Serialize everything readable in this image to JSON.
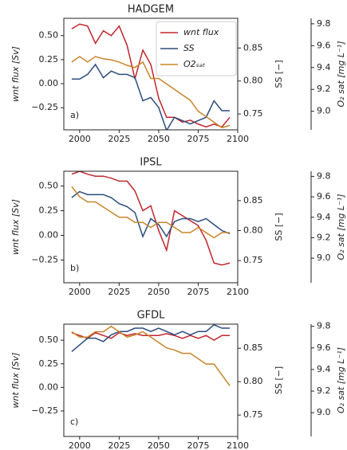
{
  "chart_data": [
    {
      "type": "line",
      "title": "HADGEM",
      "annotation": "a)",
      "legend": "upper right",
      "ylabel": "wnt flux [Sv]",
      "y2label": "SS [−]",
      "y3label": "O₂ sat [mg L⁻¹]",
      "x": [
        1995,
        2000,
        2005,
        2010,
        2015,
        2020,
        2025,
        2030,
        2035,
        2040,
        2045,
        2050,
        2055,
        2060,
        2065,
        2070,
        2075,
        2080,
        2085,
        2090,
        2095
      ],
      "xlim": [
        1990,
        2100
      ],
      "xticks": [
        2000,
        2025,
        2050,
        2075,
        2100
      ],
      "ylim": [
        -0.48,
        0.68
      ],
      "yticks": [
        {
          "value": -0.25,
          "label": "−0.25"
        },
        {
          "value": 0,
          "label": "0.00"
        },
        {
          "value": 0.25,
          "label": "0.25"
        },
        {
          "value": 0.5,
          "label": "0.50"
        }
      ],
      "y2lim": [
        0.726,
        0.895
      ],
      "y2ticks": [
        0.75,
        {
          "value": 0.8,
          "label": "0.80"
        },
        0.85
      ],
      "y3lim": [
        8.83,
        9.85
      ],
      "y3ticks": [
        {
          "value": 9.0,
          "label": "9.0"
        },
        9.2,
        9.4,
        9.6,
        9.8
      ],
      "series": [
        {
          "name": "wnt flux",
          "color": "#c0272d",
          "axis": "y",
          "values": [
            0.57,
            0.62,
            0.6,
            0.42,
            0.55,
            0.5,
            0.6,
            0.4,
            0.05,
            0.35,
            0.2,
            -0.15,
            -0.35,
            -0.35,
            -0.4,
            -0.38,
            -0.42,
            -0.45,
            -0.42,
            -0.45,
            -0.35
          ]
        },
        {
          "name": "SS",
          "color": "#2b4c7e",
          "axis": "y2",
          "values": [
            0.803,
            0.803,
            0.81,
            0.825,
            0.805,
            0.815,
            0.81,
            0.81,
            0.805,
            0.77,
            0.775,
            0.76,
            0.725,
            0.745,
            0.74,
            0.735,
            0.74,
            0.745,
            0.77,
            0.755,
            0.755
          ]
        },
        {
          "name": "O2ₛₐₜ",
          "color": "#c8852a",
          "axis": "y3",
          "values": [
            9.45,
            9.5,
            9.45,
            9.5,
            9.48,
            9.47,
            9.45,
            9.42,
            9.4,
            9.45,
            9.3,
            9.3,
            9.25,
            9.2,
            9.15,
            9.1,
            9.0,
            8.95,
            8.9,
            8.85,
            8.87
          ]
        }
      ]
    },
    {
      "type": "line",
      "title": "IPSL",
      "annotation": "b)",
      "ylabel": "wnt flux [Sv]",
      "y2label": "SS [−]",
      "y3label": "O₂ sat [mg L⁻¹]",
      "x": [
        1995,
        2000,
        2005,
        2010,
        2015,
        2020,
        2025,
        2030,
        2035,
        2040,
        2045,
        2050,
        2055,
        2060,
        2065,
        2070,
        2075,
        2080,
        2085,
        2090,
        2095
      ],
      "xlim": [
        1990,
        2100
      ],
      "xticks": [
        2000,
        2025,
        2050,
        2075,
        2100
      ],
      "ylim": [
        -0.48,
        0.65
      ],
      "yticks": [
        {
          "value": -0.25,
          "label": "−0.25"
        },
        {
          "value": 0,
          "label": "0.00"
        },
        {
          "value": 0.25,
          "label": "0.25"
        },
        {
          "value": 0.5,
          "label": "0.50"
        }
      ],
      "y2lim": [
        0.713,
        0.899
      ],
      "y2ticks": [
        0.75,
        {
          "value": 0.8,
          "label": "0.80"
        },
        0.85
      ],
      "y3lim": [
        8.76,
        9.85
      ],
      "y3ticks": [
        {
          "value": 9.0,
          "label": "9.0"
        },
        9.2,
        9.4,
        9.6,
        9.8
      ],
      "series": [
        {
          "name": "wnt flux",
          "color": "#c0272d",
          "axis": "y",
          "values": [
            0.62,
            0.65,
            0.62,
            0.6,
            0.6,
            0.58,
            0.55,
            0.55,
            0.45,
            0.25,
            0.3,
            0.05,
            -0.15,
            0.25,
            0.2,
            0.15,
            0.1,
            -0.05,
            -0.28,
            -0.3,
            -0.28
          ]
        },
        {
          "name": "SS",
          "color": "#2b4c7e",
          "axis": "y2",
          "values": [
            0.855,
            0.865,
            0.86,
            0.86,
            0.86,
            0.855,
            0.845,
            0.84,
            0.83,
            0.79,
            0.82,
            0.81,
            0.79,
            0.815,
            0.82,
            0.82,
            0.815,
            0.82,
            0.81,
            0.8,
            0.795
          ]
        },
        {
          "name": "O2ₛₐₜ",
          "color": "#c8852a",
          "axis": "y3",
          "values": [
            9.7,
            9.6,
            9.55,
            9.55,
            9.5,
            9.45,
            9.4,
            9.4,
            9.35,
            9.35,
            9.3,
            9.35,
            9.35,
            9.3,
            9.25,
            9.25,
            9.3,
            9.25,
            9.2,
            9.25,
            9.25
          ]
        }
      ]
    },
    {
      "type": "line",
      "title": "GFDL",
      "annotation": "c)",
      "ylabel": "wnt flux [Sv]",
      "y2label": "SS [−]",
      "y3label": "O₂ sat [mg L⁻¹]",
      "x": [
        1995,
        2000,
        2005,
        2010,
        2015,
        2020,
        2025,
        2030,
        2035,
        2040,
        2045,
        2050,
        2055,
        2060,
        2065,
        2070,
        2075,
        2080,
        2085,
        2090,
        2095
      ],
      "xlim": [
        1990,
        2100
      ],
      "xticks": [
        2000,
        2025,
        2050,
        2075,
        2100
      ],
      "ylim": [
        -0.52,
        0.67
      ],
      "yticks": [
        {
          "value": -0.25,
          "label": "−0.25"
        },
        {
          "value": 0,
          "label": "0.00"
        },
        {
          "value": 0.25,
          "label": "0.25"
        },
        {
          "value": 0.5,
          "label": "0.50"
        }
      ],
      "y2lim": [
        0.718,
        0.886
      ],
      "y2ticks": [
        0.75,
        {
          "value": 0.8,
          "label": "0.80"
        },
        0.85
      ],
      "y3lim": [
        8.78,
        9.82
      ],
      "y3ticks": [
        {
          "value": 9.0,
          "label": "9.0"
        },
        9.2,
        9.4,
        9.6,
        9.8
      ],
      "series": [
        {
          "name": "wnt flux",
          "color": "#c0272d",
          "axis": "y",
          "values": [
            0.58,
            0.55,
            0.52,
            0.58,
            0.55,
            0.52,
            0.58,
            0.55,
            0.57,
            0.55,
            0.55,
            0.55,
            0.57,
            0.55,
            0.52,
            0.55,
            0.52,
            0.55,
            0.5,
            0.55,
            0.55
          ]
        },
        {
          "name": "SS",
          "color": "#2b4c7e",
          "axis": "y2",
          "values": [
            0.845,
            0.855,
            0.865,
            0.865,
            0.86,
            0.87,
            0.875,
            0.875,
            0.88,
            0.88,
            0.875,
            0.88,
            0.875,
            0.87,
            0.875,
            0.87,
            0.875,
            0.875,
            0.885,
            0.88,
            0.88
          ]
        },
        {
          "name": "O2ₛₐₜ",
          "color": "#c8852a",
          "axis": "y3",
          "values": [
            9.75,
            9.7,
            9.7,
            9.75,
            9.75,
            9.8,
            9.75,
            9.7,
            9.72,
            9.75,
            9.7,
            9.65,
            9.6,
            9.58,
            9.55,
            9.55,
            9.5,
            9.45,
            9.45,
            9.35,
            9.25
          ]
        }
      ]
    }
  ]
}
